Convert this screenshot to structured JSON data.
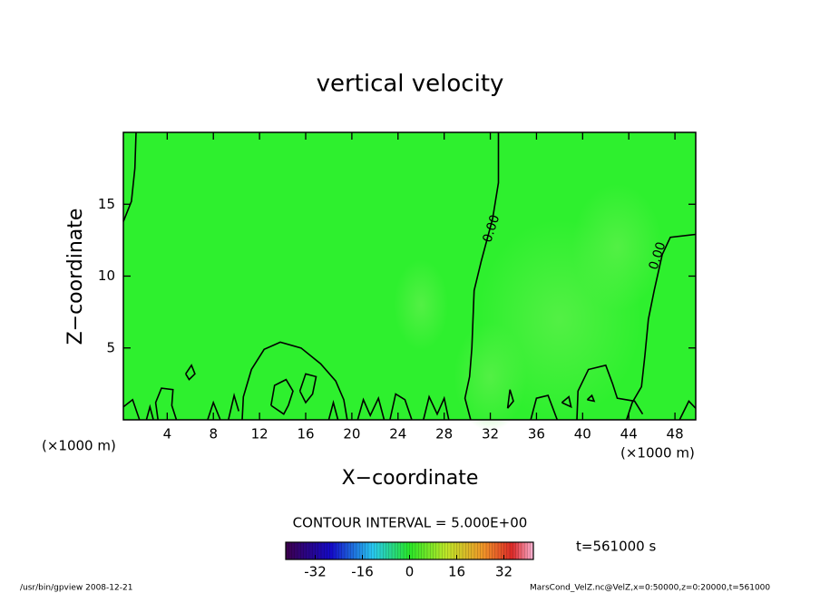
{
  "chart_data": {
    "type": "contour",
    "title": "vertical velocity",
    "x_label": "X−coordinate",
    "y_label": "Z−coordinate",
    "x_unit_left": "(×1000 m)",
    "x_unit_right": "(×1000 m)",
    "xlim": [
      0.2,
      49.8
    ],
    "ylim": [
      0,
      20
    ],
    "xticks": [
      4,
      8,
      12,
      16,
      20,
      24,
      28,
      32,
      36,
      40,
      44,
      48
    ],
    "yticks": [
      5,
      10,
      15
    ],
    "contour_levels": [
      0
    ],
    "contour_level_labels": [
      "0.00"
    ],
    "contour_interval_text": "CONTOUR INTERVAL = 5.000E+00",
    "time_text": "t=561000 s",
    "colorbar_lim": [
      -42,
      42
    ],
    "colorbar_ticks": [
      -32,
      -16,
      0,
      16,
      32
    ],
    "footer_left": "/usr/bin/gpview   2008-12-21",
    "footer_right": "MarsCond_VelZ.nc@VelZ,x=0:50000,z=0:20000,t=561000",
    "field_color": "#2ef02e"
  }
}
